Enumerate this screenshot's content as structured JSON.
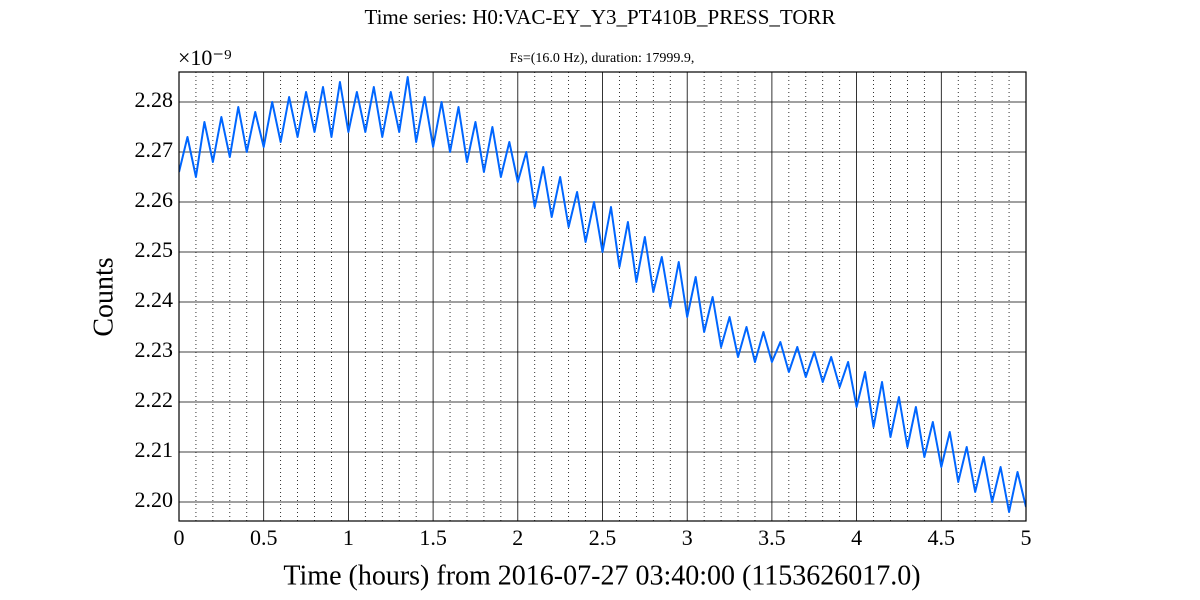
{
  "chart_data": {
    "type": "line",
    "title": "Time series:  H0:VAC-EY_Y3_PT410B_PRESS_TORR",
    "subtitle": "Fs=(16.0 Hz), duration: 17999.9,",
    "x_label": "Time (hours) from 2016-07-27 03:40:00 (1153626017.0)",
    "y_label": "Counts",
    "y_offset_label": "×10⁻⁹",
    "x": [
      0,
      0.05,
      0.1,
      0.15,
      0.2,
      0.25,
      0.3,
      0.35,
      0.4,
      0.45,
      0.5,
      0.55,
      0.6,
      0.65,
      0.7,
      0.75,
      0.8,
      0.85,
      0.9,
      0.95,
      1,
      1.05,
      1.1,
      1.15,
      1.2,
      1.25,
      1.3,
      1.35,
      1.4,
      1.45,
      1.5,
      1.55,
      1.6,
      1.65,
      1.7,
      1.75,
      1.8,
      1.85,
      1.9,
      1.95,
      2,
      2.05,
      2.1,
      2.15,
      2.2,
      2.25,
      2.3,
      2.35,
      2.4,
      2.45,
      2.5,
      2.55,
      2.6,
      2.65,
      2.7,
      2.75,
      2.8,
      2.85,
      2.9,
      2.95,
      3,
      3.05,
      3.1,
      3.15,
      3.2,
      3.25,
      3.3,
      3.35,
      3.4,
      3.45,
      3.5,
      3.55,
      3.6,
      3.65,
      3.7,
      3.75,
      3.8,
      3.85,
      3.9,
      3.95,
      4,
      4.05,
      4.1,
      4.15,
      4.2,
      4.25,
      4.3,
      4.35,
      4.4,
      4.45,
      4.5,
      4.55,
      4.6,
      4.65,
      4.7,
      4.75,
      4.8,
      4.85,
      4.9,
      4.95,
      5
    ],
    "series": [
      {
        "name": "H0:VAC-EY_Y3_PT410B_PRESS_TORR",
        "color": "#0066ff",
        "values": [
          2.266,
          2.273,
          2.265,
          2.276,
          2.268,
          2.277,
          2.269,
          2.279,
          2.27,
          2.278,
          2.271,
          2.28,
          2.272,
          2.281,
          2.273,
          2.282,
          2.274,
          2.283,
          2.273,
          2.284,
          2.274,
          2.282,
          2.274,
          2.283,
          2.273,
          2.282,
          2.274,
          2.285,
          2.272,
          2.281,
          2.271,
          2.28,
          2.27,
          2.279,
          2.268,
          2.276,
          2.266,
          2.275,
          2.265,
          2.272,
          2.264,
          2.27,
          2.259,
          2.267,
          2.257,
          2.265,
          2.255,
          2.262,
          2.252,
          2.26,
          2.25,
          2.259,
          2.247,
          2.256,
          2.244,
          2.253,
          2.242,
          2.249,
          2.239,
          2.248,
          2.237,
          2.245,
          2.234,
          2.241,
          2.231,
          2.237,
          2.229,
          2.235,
          2.228,
          2.234,
          2.228,
          2.232,
          2.226,
          2.231,
          2.225,
          2.23,
          2.224,
          2.229,
          2.223,
          2.228,
          2.219,
          2.226,
          2.215,
          2.224,
          2.213,
          2.221,
          2.211,
          2.219,
          2.209,
          2.216,
          2.207,
          2.214,
          2.204,
          2.211,
          2.202,
          2.209,
          2.2,
          2.207,
          2.198,
          2.206,
          2.199
        ]
      }
    ],
    "xlim": [
      0,
      5
    ],
    "xticks": [
      0,
      0.5,
      1,
      1.5,
      2,
      2.5,
      3,
      3.5,
      4,
      4.5,
      5
    ],
    "x_minor_ticks": [
      0.1,
      0.2,
      0.3,
      0.4,
      0.6,
      0.7,
      0.8,
      0.9,
      1.1,
      1.2,
      1.3,
      1.4,
      1.6,
      1.7,
      1.8,
      1.9,
      2.1,
      2.2,
      2.3,
      2.4,
      2.6,
      2.7,
      2.8,
      2.9,
      3.1,
      3.2,
      3.3,
      3.4,
      3.6,
      3.7,
      3.8,
      3.9,
      4.1,
      4.2,
      4.3,
      4.4,
      4.6,
      4.7,
      4.8,
      4.9
    ],
    "ylim": [
      2.1962,
      2.286
    ],
    "yticks": [
      {
        "value": 2.2,
        "label": "2.20"
      },
      2.21,
      2.22,
      2.23,
      2.24,
      2.25,
      2.26,
      2.27,
      2.28
    ],
    "grid": true
  }
}
